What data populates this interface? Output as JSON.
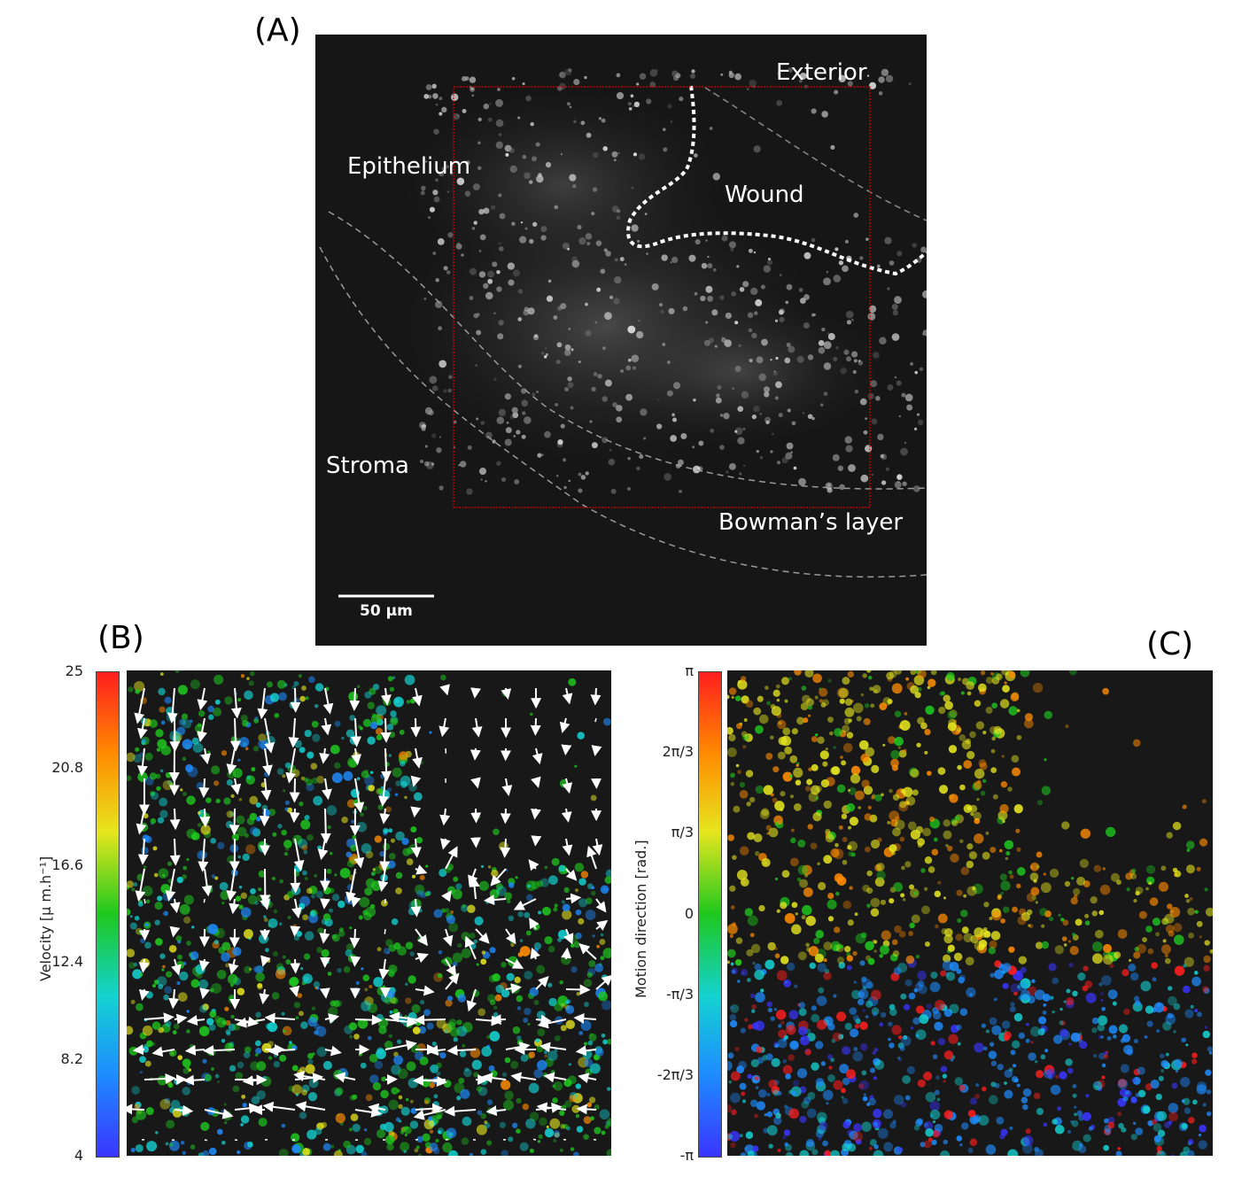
{
  "panels": {
    "a": {
      "letter": "(A)",
      "labels": {
        "exterior": "Exterior",
        "epithelium": "Epithelium",
        "wound": "Wound",
        "stroma": "Stroma",
        "bowman": "Bowman’s layer"
      },
      "scale_bar": "50 µm"
    },
    "b": {
      "letter": "(B)",
      "colorbar": {
        "title": "Velocity [μ m.h⁻¹]",
        "ticks": [
          "25",
          "20.8",
          "16.6",
          "12.4",
          "8.2",
          "4"
        ]
      }
    },
    "c": {
      "letter": "(C)",
      "colorbar": {
        "title": "Motion direction [rad.]",
        "ticks": [
          "π",
          "2π/3",
          "π/3",
          "0",
          "-π/3",
          "-2π/3",
          "-π"
        ]
      }
    }
  },
  "colors": {
    "colormap": [
      "#3a35ff",
      "#1e8cff",
      "#14d2d2",
      "#1ec81e",
      "#e6e61e",
      "#ff8c00",
      "#ff1e1e"
    ],
    "roi_box": "#e00000",
    "image_background": "#151515"
  }
}
